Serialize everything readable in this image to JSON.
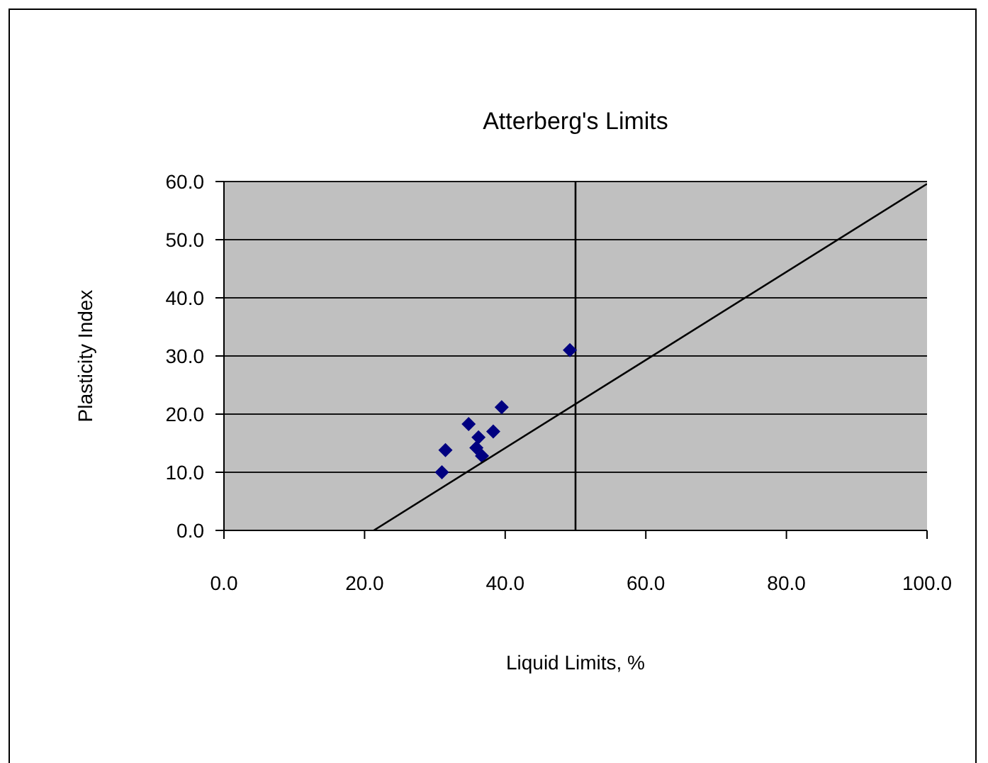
{
  "chart_data": {
    "type": "scatter",
    "title": "Atterberg's Limits",
    "xlabel": "Liquid Limits, %",
    "ylabel": "Plasticity Index",
    "xlim": [
      0,
      100
    ],
    "ylim": [
      0,
      60
    ],
    "xticks": [
      {
        "value": 0,
        "label": "0.0"
      },
      {
        "value": 20,
        "label": "20.0"
      },
      {
        "value": 40,
        "label": "40.0"
      },
      {
        "value": 60,
        "label": "60.0"
      },
      {
        "value": 80,
        "label": "80.0"
      },
      {
        "value": 100,
        "label": "100.0"
      }
    ],
    "yticks": [
      {
        "value": 0,
        "label": "0.0"
      },
      {
        "value": 10,
        "label": "10.0"
      },
      {
        "value": 20,
        "label": "20.0"
      },
      {
        "value": 30,
        "label": "30.0"
      },
      {
        "value": 40,
        "label": "40.0"
      },
      {
        "value": 50,
        "label": "50.0"
      },
      {
        "value": 60,
        "label": "60.0"
      }
    ],
    "grid": "y",
    "series": [
      {
        "marker": "diamond",
        "color": "#000080",
        "x": [
          49.2,
          39.5,
          34.8,
          38.3,
          36.2,
          35.9,
          36.7,
          31.5,
          31.0
        ],
        "values": [
          31.0,
          21.2,
          18.3,
          17.0,
          16.0,
          14.2,
          12.8,
          13.8,
          10.0
        ]
      },
      {
        "type": "line",
        "marker": "none",
        "color": "#000000",
        "x": [
          21.3,
          100
        ],
        "values": [
          0,
          59.6
        ]
      }
    ],
    "ref_lines": [
      {
        "axis": "x",
        "value": 50,
        "color": "#000000"
      }
    ]
  }
}
